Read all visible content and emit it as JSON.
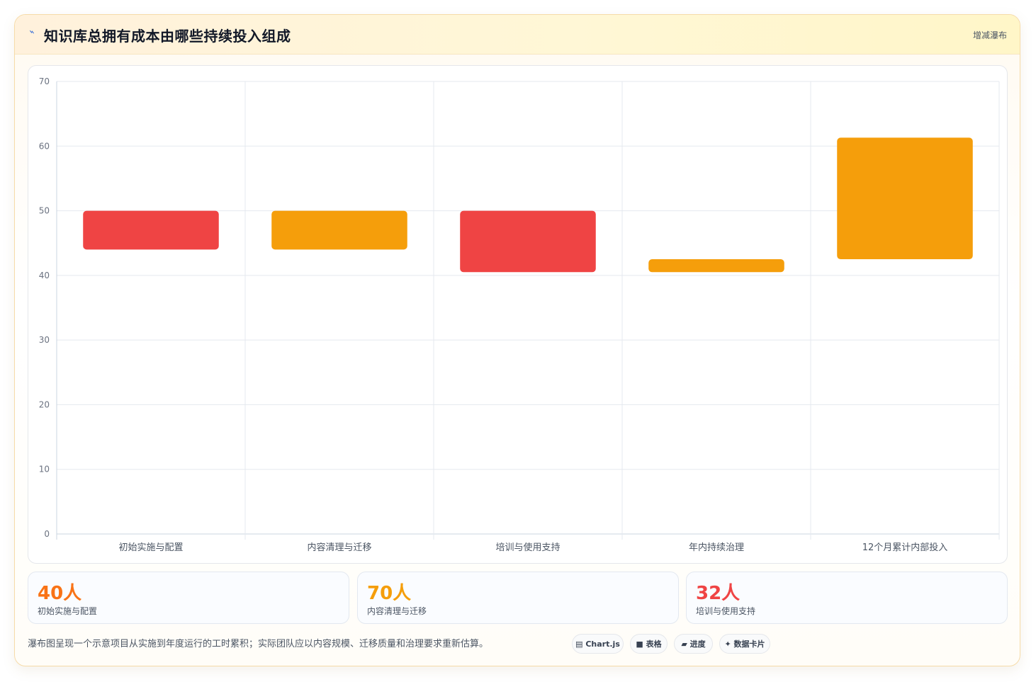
{
  "header": {
    "icon": "spark-icon",
    "title": "知识库总拥有成本由哪些持续投入组成",
    "subtitle": "增减瀑布"
  },
  "chart_data": {
    "type": "bar",
    "subtype": "waterfall",
    "categories": [
      "初始实施与配置",
      "内容清理与迁移",
      "培训与使用支持",
      "年内持续治理",
      "12个月累计内部投入"
    ],
    "ranges": [
      [
        44,
        50
      ],
      [
        44,
        50
      ],
      [
        40.5,
        50
      ],
      [
        40.5,
        42.5
      ],
      [
        42.5,
        61.3
      ]
    ],
    "colors": [
      "#ef4444",
      "#f59e0b",
      "#ef4444",
      "#f59e0b",
      "#f59e0b"
    ],
    "ylim": [
      0,
      70
    ],
    "yticks": [
      0,
      10,
      20,
      30,
      40,
      50,
      60,
      70
    ],
    "grid": true,
    "legend": "none"
  },
  "stats": [
    {
      "value": "40人",
      "label": "初始实施与配置",
      "color": "#f97316"
    },
    {
      "value": "70人",
      "label": "内容清理与迁移",
      "color": "#f59e0b"
    },
    {
      "value": "32人",
      "label": "培训与使用支持",
      "color": "#ef4444"
    }
  ],
  "footnote": "瀑布图呈现一个示意项目从实施到年度运行的工时累积；实际团队应以内容规模、迁移质量和治理要求重新估算。",
  "pills": [
    {
      "icon": "▤",
      "label": "Chart.js"
    },
    {
      "icon": "■",
      "label": "表格"
    },
    {
      "icon": "▰",
      "label": "进度"
    },
    {
      "icon": "✦",
      "label": "数据卡片"
    }
  ]
}
